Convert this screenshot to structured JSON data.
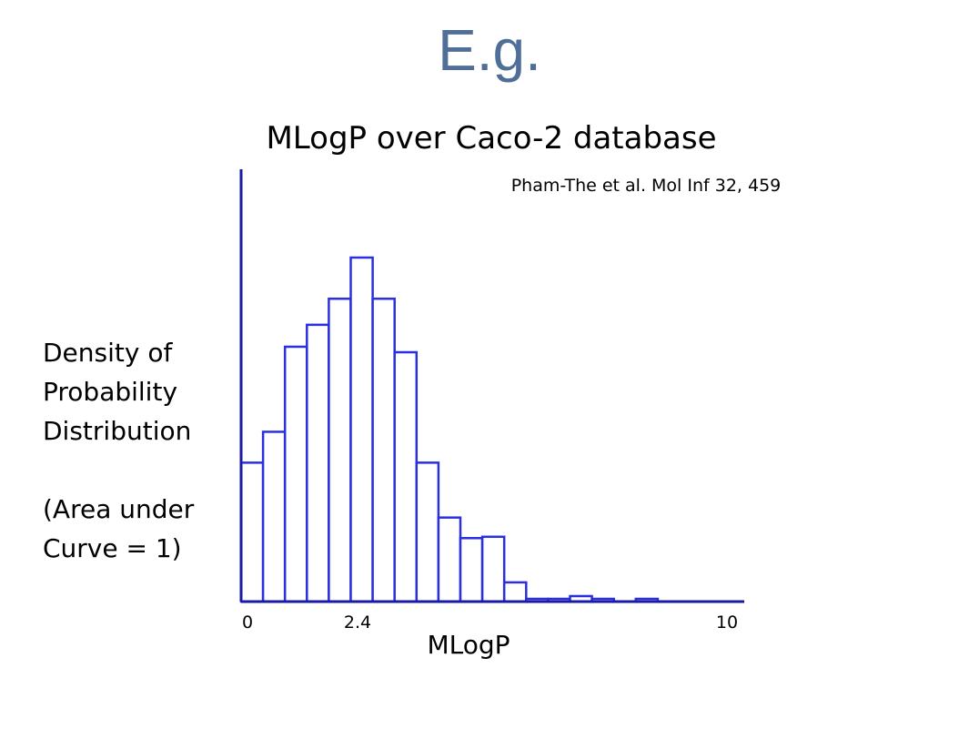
{
  "slide": {
    "title": "E.g."
  },
  "chart_data": {
    "type": "bar",
    "title": "MLogP over Caco-2 database",
    "citation": "Pham-The et al. Mol Inf 32, 459",
    "ylabel_lines": [
      "Density of",
      "Probability",
      "Distribution",
      "",
      "(Area under",
      "Curve = 1)"
    ],
    "xlabel": "MLogP",
    "x_tick_labels": [
      {
        "value": 0,
        "label": "0"
      },
      {
        "value": 2.4,
        "label": "2.4"
      },
      {
        "value": 10,
        "label": "10"
      }
    ],
    "xlim": [
      0,
      10.4
    ],
    "bin_width": 0.465,
    "bins_start": 0,
    "values": [
      0.0405,
      0.0495,
      0.0743,
      0.0807,
      0.0883,
      0.1003,
      0.0883,
      0.0727,
      0.0405,
      0.0245,
      0.0185,
      0.0189,
      0.0056,
      0.0008,
      0.0008,
      0.0016,
      0.0008,
      0,
      0.0008,
      0
    ],
    "ylim": [
      0,
      0.1
    ],
    "grid": false,
    "legend": "none",
    "colors": {
      "bar_stroke": "#2b2fe0",
      "axis": "#1a1aa8",
      "bar_fill": "#ffffff",
      "title": "#4f6f99"
    }
  }
}
